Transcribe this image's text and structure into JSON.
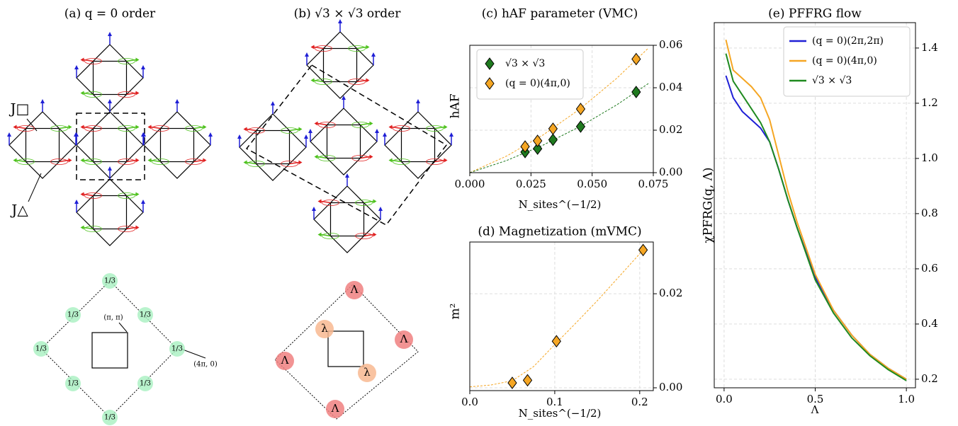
{
  "diagrams": [
    {
      "title": "(a) q = 0 order",
      "bond_labels": [
        "J□",
        "J△"
      ],
      "site_labels": [
        "1/3",
        "1/3",
        "1/3",
        "1/3",
        "1/3",
        "1/3",
        "1/3",
        "1/3"
      ],
      "momentum_labels": [
        "(π, π)",
        "(4π, 0)"
      ]
    },
    {
      "title": "(b) √3 × √3 order",
      "site_labels": [
        "Λ",
        "Λ",
        "Λ",
        "Λ",
        "λ",
        "λ"
      ]
    }
  ],
  "chart_data": [
    {
      "type": "scatter",
      "title": "(c) hAF parameter (VMC)",
      "xlabel": "N_sites^(−1/2)",
      "ylabel": "hAF",
      "xlim": [
        0,
        0.075
      ],
      "ylim": [
        0,
        0.06
      ],
      "xticks": [
        {
          "value": 0,
          "label": "0.000"
        },
        {
          "value": 0.025,
          "label": "0.025"
        },
        {
          "value": 0.05,
          "label": "0.050"
        },
        {
          "value": 0.075,
          "label": "0.075"
        }
      ],
      "yticks": [
        {
          "value": 0,
          "label": "0.00"
        },
        0.02,
        0.04,
        0.06
      ],
      "grid": true,
      "legend": "upper left",
      "series": [
        {
          "name": "√3 × √3",
          "color": "#1f7a1f",
          "x": [
            0.0226,
            0.0277,
            0.034,
            0.0453,
            0.068
          ],
          "values": [
            0.0097,
            0.0113,
            0.0155,
            0.0217,
            0.038
          ]
        },
        {
          "name": "(q = 0)(4π,0)",
          "color": "#f5a623",
          "x": [
            0.0226,
            0.0277,
            0.034,
            0.0453,
            0.068
          ],
          "values": [
            0.0123,
            0.015,
            0.0207,
            0.03,
            0.0535
          ]
        }
      ],
      "fits": [
        {
          "color": "#f5a623",
          "x": [
            0,
            0.015,
            0.03,
            0.045,
            0.06,
            0.073
          ],
          "values": [
            0,
            0.0078,
            0.0178,
            0.03,
            0.0444,
            0.0587
          ]
        },
        {
          "color": "#1f7a1f",
          "x": [
            0,
            0.015,
            0.03,
            0.045,
            0.06,
            0.073
          ],
          "values": [
            0,
            0.0057,
            0.013,
            0.0217,
            0.0319,
            0.042
          ]
        }
      ]
    },
    {
      "type": "scatter",
      "title": "(d) Magnetization (mVMC)",
      "xlabel": "N_sites^(−1/2)",
      "ylabel": "m²",
      "xlim": [
        0,
        0.216
      ],
      "ylim": [
        -0.0006,
        0.031
      ],
      "xticks": [
        {
          "value": 0,
          "label": "0.0"
        },
        0.1,
        0.2
      ],
      "yticks": [
        {
          "value": 0,
          "label": "0.00"
        },
        0.02
      ],
      "grid": true,
      "series": [
        {
          "color": "#f5a623",
          "x": [
            0.05,
            0.068,
            0.102,
            0.204
          ],
          "values": [
            0.00104,
            0.0016,
            0.0099,
            0.0293
          ]
        }
      ],
      "fits": [
        {
          "color": "#f5a623",
          "x": [
            0,
            0.025,
            0.05,
            0.075,
            0.1,
            0.125,
            0.15,
            0.175,
            0.204
          ],
          "values": [
            0.0002,
            0.0006,
            0.0015,
            0.0045,
            0.0092,
            0.0138,
            0.0185,
            0.0235,
            0.0293
          ]
        }
      ]
    },
    {
      "type": "line",
      "title": "(e) PFFRG flow",
      "xlabel": "Λ",
      "ylabel": "χPFRG(q, Λ)",
      "xlim": [
        -0.054,
        1.05
      ],
      "ylim": [
        0.169,
        1.492
      ],
      "xticks": [
        {
          "value": 0,
          "label": "0.0"
        },
        0.5,
        {
          "value": 1,
          "label": "1.0"
        }
      ],
      "yticks": [
        0.2,
        0.4,
        0.6,
        0.8,
        {
          "value": 1,
          "label": "1.0"
        },
        1.2,
        1.4
      ],
      "grid": true,
      "legend": "upper right",
      "x": [
        0.01,
        0.05,
        0.1,
        0.15,
        0.2,
        0.25,
        0.3,
        0.35,
        0.4,
        0.5,
        0.6,
        0.7,
        0.8,
        0.9,
        1.0
      ],
      "series": [
        {
          "name": "(q = 0)(2π,2π)",
          "color": "#1f1fd6",
          "values": [
            1.3,
            1.22,
            1.17,
            1.14,
            1.11,
            1.06,
            0.96,
            0.85,
            0.75,
            0.57,
            0.45,
            0.36,
            0.29,
            0.24,
            0.2
          ]
        },
        {
          "name": "(q = 0)(4π,0)",
          "color": "#f5a623",
          "values": [
            1.43,
            1.32,
            1.29,
            1.26,
            1.22,
            1.14,
            1.01,
            0.88,
            0.77,
            0.58,
            0.45,
            0.36,
            0.29,
            0.24,
            0.2
          ]
        },
        {
          "name": "√3 × √3",
          "color": "#1f8a1f",
          "values": [
            1.38,
            1.28,
            1.23,
            1.18,
            1.13,
            1.06,
            0.96,
            0.85,
            0.75,
            0.56,
            0.44,
            0.35,
            0.285,
            0.235,
            0.195
          ]
        }
      ]
    }
  ]
}
